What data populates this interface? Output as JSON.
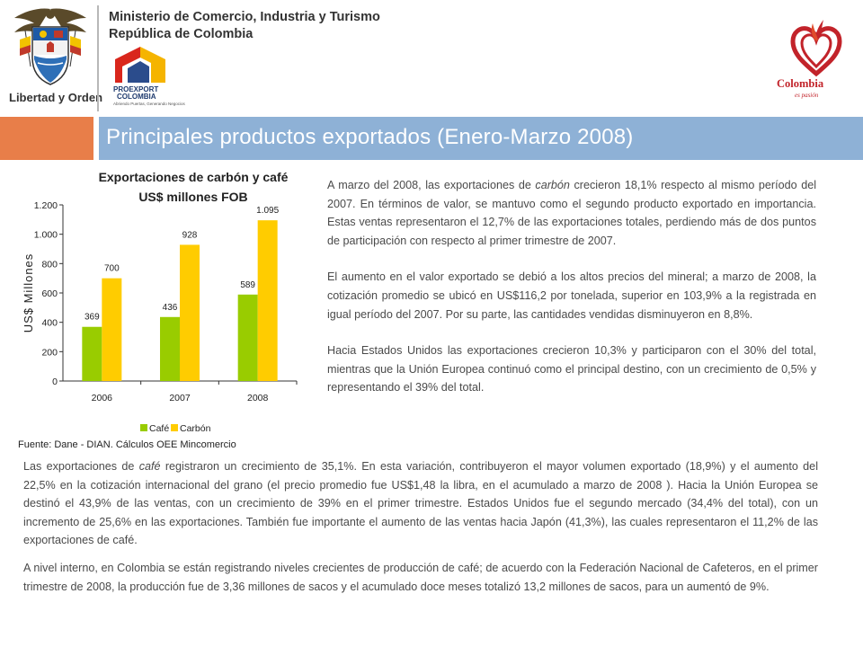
{
  "header": {
    "ministry_line1": "Ministerio de Comercio, Industria y Turismo",
    "ministry_line2": "República de Colombia",
    "coat_of_arms_motto": "Libertad y Orden",
    "proexport_name": "PROEXPORT",
    "proexport_country": "COLOMBIA",
    "proexport_tagline": "Abriendo Puertas, Generando Negocios",
    "brand_name": "Colombia",
    "brand_tagline": "es pasión"
  },
  "title": "Principales productos exportados (Enero-Marzo 2008)",
  "colors": {
    "band_left": "#e87e49",
    "band_right": "#8eb1d6",
    "cafe": "#99cc00",
    "carbon": "#ffcc00",
    "brand_red": "#c2232a"
  },
  "chart_data": {
    "type": "bar",
    "title_line1": "Exportaciones de carbón y café",
    "title_line2": "US$ millones FOB",
    "ylabel": "US$ Millones",
    "categories": [
      "2006",
      "2007",
      "2008"
    ],
    "series": [
      {
        "name": "Café",
        "values": [
          369,
          436,
          589
        ],
        "labels": [
          "369",
          "436",
          "589"
        ]
      },
      {
        "name": "Carbón",
        "values": [
          700,
          928,
          1095
        ],
        "labels": [
          "700",
          "928",
          "1.095"
        ]
      }
    ],
    "ylim": [
      0,
      1200
    ],
    "yticks": [
      {
        "value": 0,
        "label": "0"
      },
      {
        "value": 200,
        "label": "200"
      },
      {
        "value": 400,
        "label": "400"
      },
      {
        "value": 600,
        "label": "600"
      },
      {
        "value": 800,
        "label": "800"
      },
      {
        "value": 1000,
        "label": "1.000"
      },
      {
        "value": 1200,
        "label": "1.200"
      }
    ],
    "grid": false,
    "legend_position": "bottom"
  },
  "source": "Fuente: Dane - DIAN. Cálculos OEE Mincomercio",
  "right_paragraphs": [
    "A marzo del 2008, las exportaciones de carbón crecieron 18,1% respecto al mismo período del 2007. En términos de valor, se mantuvo como el segundo producto exportado en importancia. Estas ventas representaron el 12,7% de las exportaciones totales, perdiendo más de dos puntos de participación con respecto al primer trimestre de 2007.",
    "El aumento en el valor exportado se debió a los altos precios del mineral; a marzo de 2008, la cotización promedio se ubicó en US$116,2 por tonelada, superior en 103,9% a la registrada en igual período del 2007. Por su parte, las cantidades vendidas disminuyeron en 8,8%.",
    "Hacia Estados Unidos las exportaciones crecieron 10,3% y participaron con el 30% del total, mientras que la Unión Europea continuó como el principal destino, con un crecimiento de 0,5% y representando el 39% del total."
  ],
  "bottom_paragraphs": [
    "Las exportaciones de café registraron un crecimiento de 35,1%. En esta variación, contribuyeron el mayor volumen exportado (18,9%) y el aumento del 22,5% en la cotización internacional del grano (el precio promedio fue US$1,48 la libra, en el acumulado a marzo de 2008 ). Hacia la Unión Europea se destinó el 43,9% de las ventas, con un crecimiento de 39% en el primer trimestre. Estados Unidos fue el segundo mercado (34,4% del total), con un incremento de 25,6% en las exportaciones. También fue importante el aumento de las ventas hacia Japón (41,3%), las cuales representaron el 11,2% de las exportaciones de café.",
    "A nivel interno, en Colombia se están registrando niveles crecientes de producción de café; de acuerdo con la Federación Nacional de Cafeteros, en el primer trimestre de 2008, la producción fue de 3,36 millones de sacos y el acumulado doce meses totalizó 13,2 millones de sacos, para un aumentó de 9%."
  ]
}
